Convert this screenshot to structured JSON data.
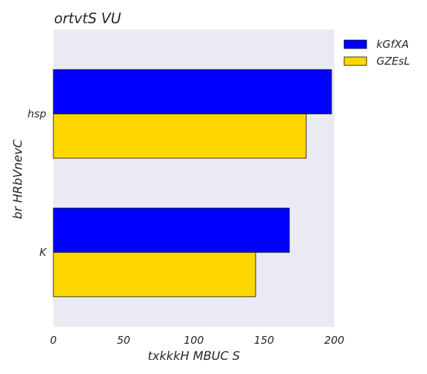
{
  "chart_data": {
    "type": "bar",
    "orientation": "horizontal",
    "title": "ortvtS VU",
    "xlabel": "txkkkH  MBUC S",
    "ylabel": "br HRbVnevC",
    "categories": [
      "K",
      "hsp"
    ],
    "series": [
      {
        "name": "kGfXA",
        "color": "#0000ff",
        "values": [
          168,
          198
        ]
      },
      {
        "name": "GZEsL",
        "color": "#ffd700",
        "values": [
          144,
          180
        ]
      }
    ],
    "xlim": [
      0,
      200
    ],
    "xticks": [
      0,
      50,
      100,
      150,
      200
    ],
    "grid": false,
    "legend_position": "outside-top-right",
    "background_color": "#eaeaf2"
  }
}
